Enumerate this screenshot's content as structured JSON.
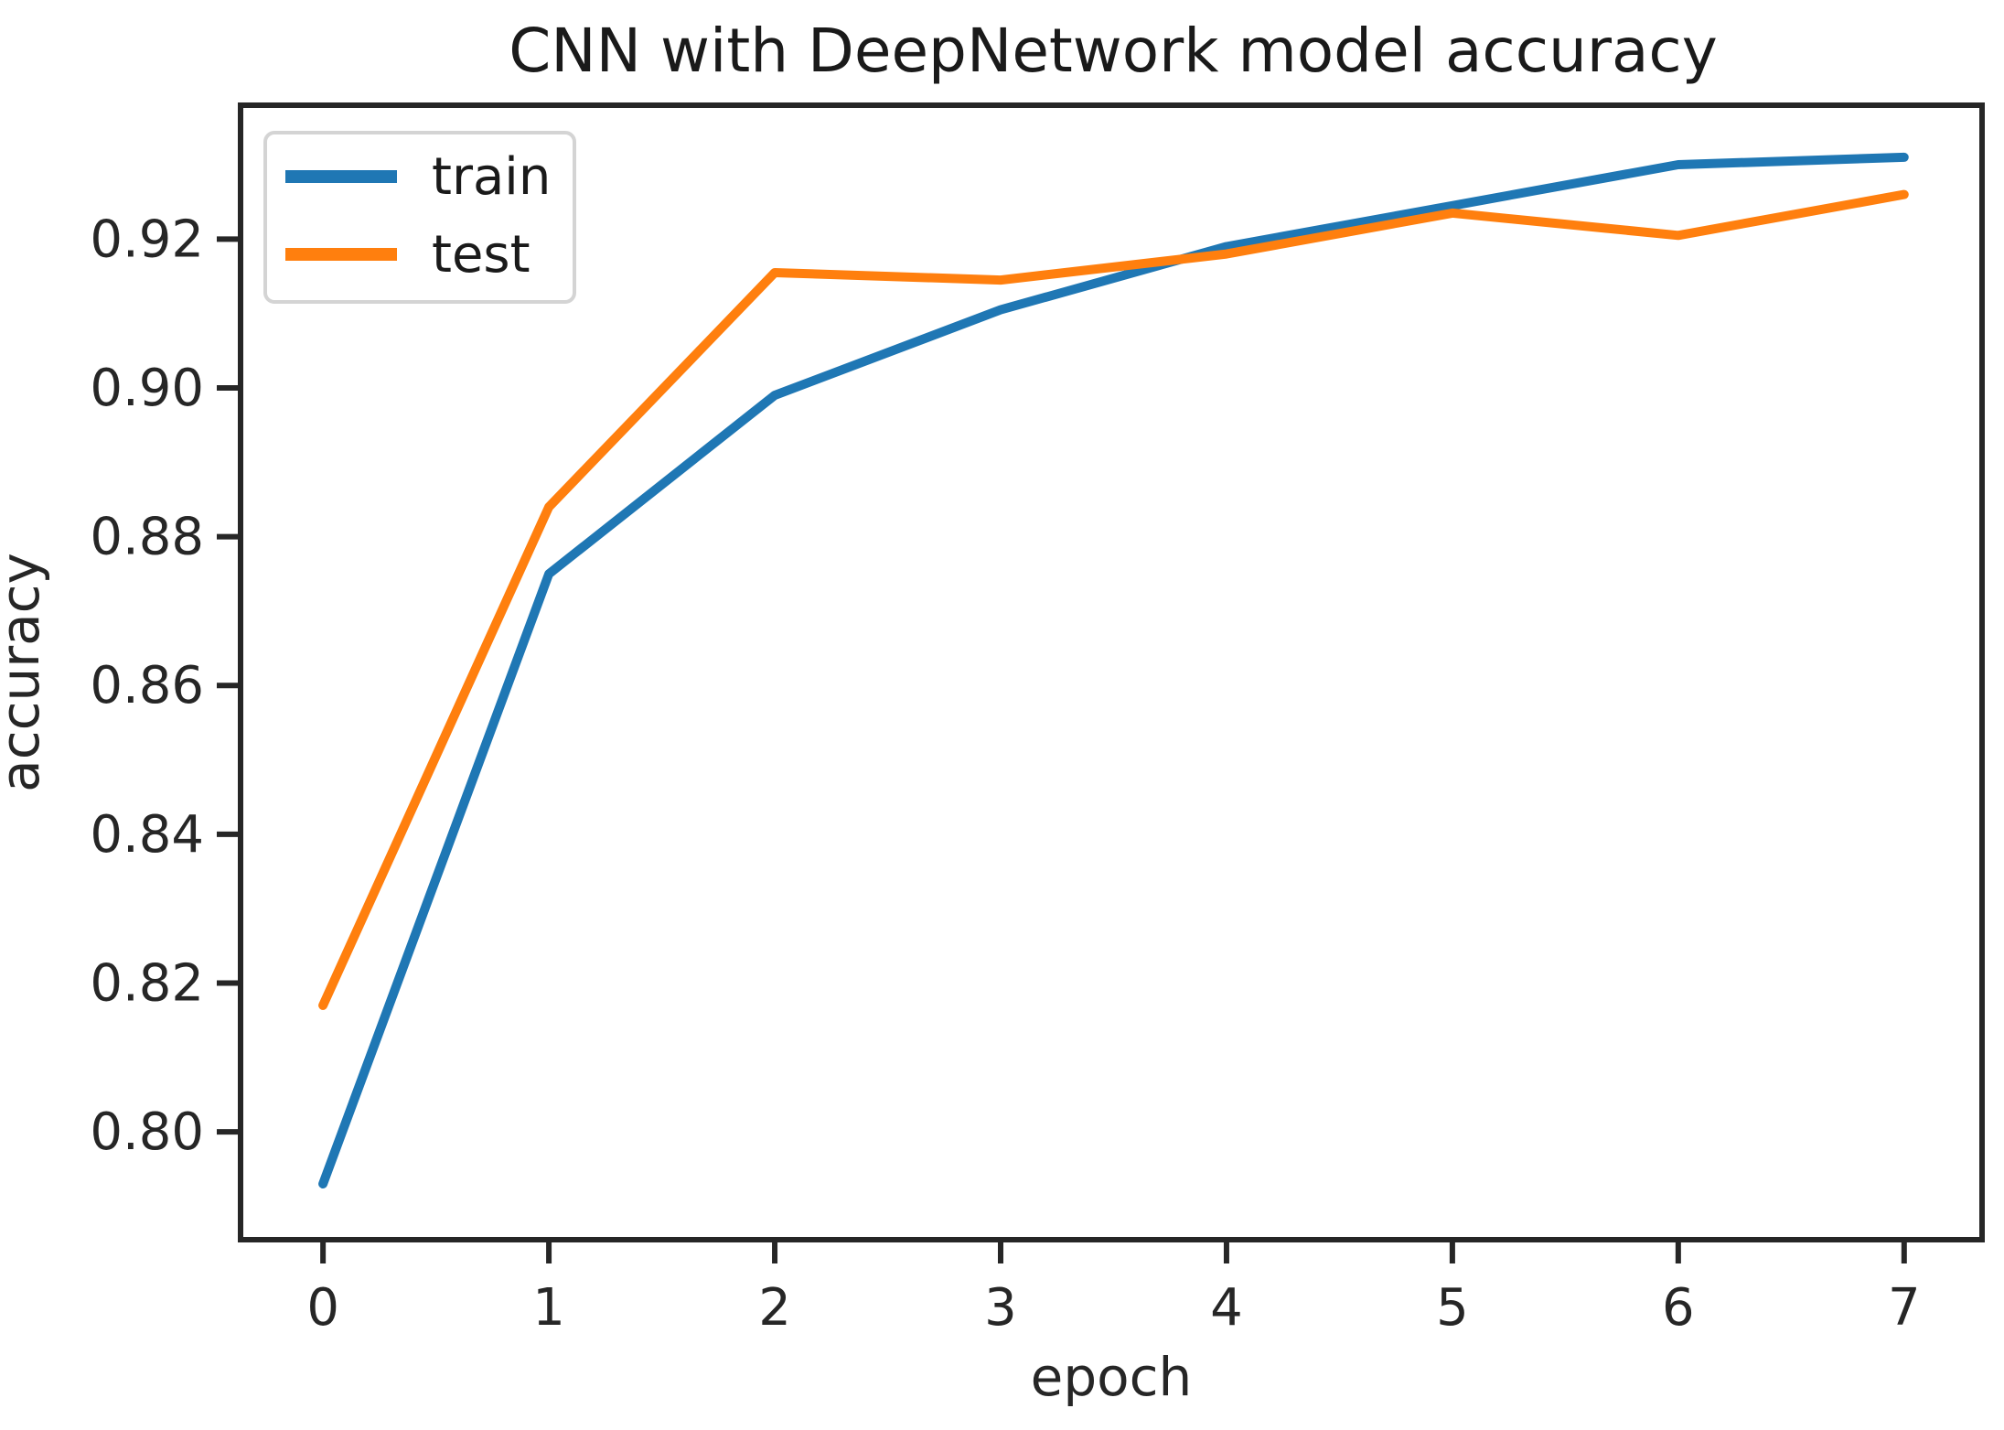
{
  "figure": {
    "background": "#ffffff"
  },
  "chart_data": {
    "type": "line",
    "title": "CNN with DeepNetwork model accuracy",
    "xlabel": "epoch",
    "ylabel": "accuracy",
    "x": [
      0,
      1,
      2,
      3,
      4,
      5,
      6,
      7
    ],
    "series": [
      {
        "name": "train",
        "color": "#1f77b4",
        "values": [
          0.793,
          0.875,
          0.899,
          0.9105,
          0.919,
          0.9245,
          0.93,
          0.931
        ]
      },
      {
        "name": "test",
        "color": "#ff7f0e",
        "values": [
          0.817,
          0.884,
          0.9155,
          0.9145,
          0.918,
          0.9235,
          0.9205,
          0.926
        ]
      }
    ],
    "xlim": [
      -0.365,
      7.345
    ],
    "ylim": [
      0.7855,
      0.938
    ],
    "x_ticks": [
      0,
      1,
      2,
      3,
      4,
      5,
      6,
      7
    ],
    "x_tick_labels": [
      "0",
      "1",
      "2",
      "3",
      "4",
      "5",
      "6",
      "7"
    ],
    "y_ticks": [
      0.8,
      0.82,
      0.84,
      0.86,
      0.88,
      0.9,
      0.92
    ],
    "y_tick_labels": [
      "0.80",
      "0.82",
      "0.84",
      "0.86",
      "0.88",
      "0.90",
      "0.92"
    ],
    "legend": {
      "position": "upper left",
      "entries": [
        "train",
        "test"
      ]
    },
    "grid": false,
    "frame_color": "#262626",
    "legend_border_color": "#d4d4d4"
  }
}
